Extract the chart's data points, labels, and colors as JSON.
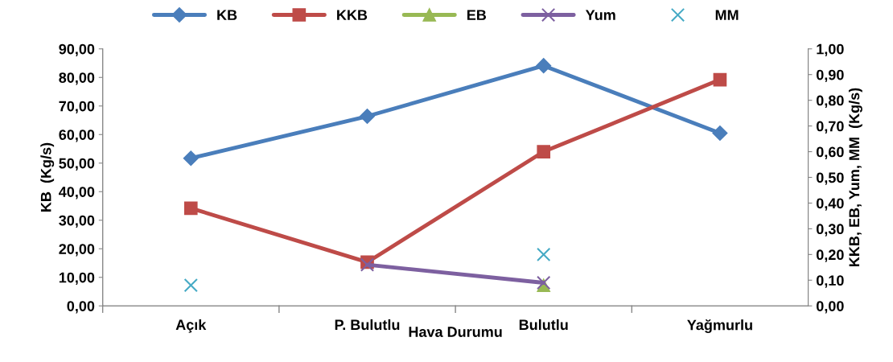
{
  "chart_data": {
    "type": "line",
    "xlabel": "Hava Durumu",
    "ylabel": "KB  (Kg/s)",
    "y2label": "KKB, EB, Yum, MM  (Kg/s)",
    "categories": [
      "Açık",
      "P. Bulutlu",
      "Bulutlu",
      "Yağmurlu"
    ],
    "series": [
      {
        "name": "KB",
        "color": "#4a7ebb",
        "marker": "diamond",
        "values": [
          51.7,
          66.4,
          84.1,
          60.5
        ]
      },
      {
        "name": "KKB",
        "color": "#be4b48",
        "marker": "square",
        "axis": "y2",
        "values": [
          0.38,
          0.17,
          0.6,
          0.88
        ]
      },
      {
        "name": "EB",
        "color": "#98b954",
        "marker": "triangle",
        "axis": "y2",
        "values": [
          null,
          null,
          0.08,
          null
        ]
      },
      {
        "name": "Yum",
        "color": "#7d60a0",
        "marker": "cross",
        "axis": "y2",
        "values": [
          null,
          0.16,
          0.09,
          null
        ]
      },
      {
        "name": "MM",
        "type": "scatter",
        "color": "#46aac5",
        "marker": "cross",
        "axis": "y2",
        "values": [
          0.08,
          null,
          0.2,
          null
        ]
      }
    ],
    "ylim": [
      0,
      90
    ],
    "yticks": [
      {
        "value": 0,
        "label": "0,00"
      },
      {
        "value": 10,
        "label": "10,00"
      },
      {
        "value": 20,
        "label": "20,00"
      },
      {
        "value": 30,
        "label": "30,00"
      },
      {
        "value": 40,
        "label": "40,00"
      },
      {
        "value": 50,
        "label": "50,00"
      },
      {
        "value": 60,
        "label": "60,00"
      },
      {
        "value": 70,
        "label": "70,00"
      },
      {
        "value": 80,
        "label": "80,00"
      },
      {
        "value": 90,
        "label": "90,00"
      }
    ],
    "y2lim": [
      0,
      1
    ],
    "y2ticks": [
      {
        "value": 0,
        "label": "0,00"
      },
      {
        "value": 0.1,
        "label": "0,10"
      },
      {
        "value": 0.2,
        "label": "0,20"
      },
      {
        "value": 0.3,
        "label": "0,30"
      },
      {
        "value": 0.4,
        "label": "0,40"
      },
      {
        "value": 0.5,
        "label": "0,50"
      },
      {
        "value": 0.6,
        "label": "0,60"
      },
      {
        "value": 0.7,
        "label": "0,70"
      },
      {
        "value": 0.8,
        "label": "0,80"
      },
      {
        "value": 0.9,
        "label": "0,90"
      },
      {
        "value": 1,
        "label": "1,00"
      }
    ],
    "grid": false,
    "legend": "top",
    "line_style": "solid"
  }
}
